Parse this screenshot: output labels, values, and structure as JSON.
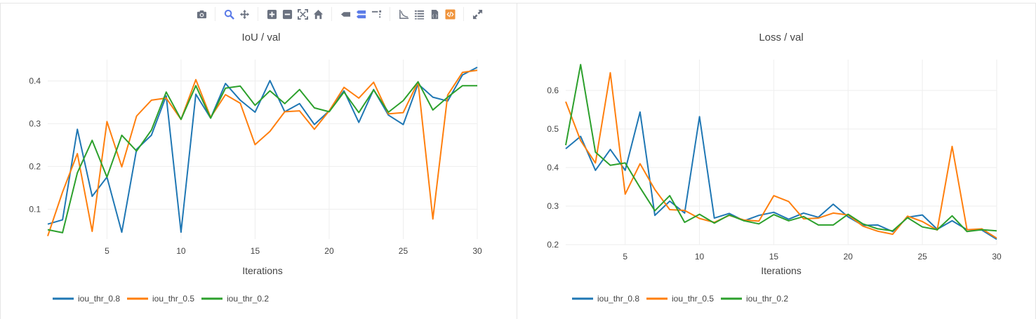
{
  "toolbar": {
    "icons": [
      "camera-icon",
      "zoom-icon",
      "pan-icon",
      "zoom-in-icon",
      "zoom-out-icon",
      "autoscale-icon",
      "reset-axes-icon",
      "hover-closest-icon",
      "hover-compare-icon",
      "spike-lines-icon",
      "log-scale-icon",
      "data-table-icon",
      "download-json-icon",
      "show-code-icon",
      "fullscreen-icon"
    ],
    "colors": {
      "inactive": "#6b7280",
      "active": "#5b7be8",
      "accent": "#f0943c"
    }
  },
  "chart_data": [
    {
      "type": "line",
      "title": "IoU / val",
      "xlabel": "Iterations",
      "ylabel": "",
      "xlim": [
        1,
        30
      ],
      "ylim": [
        0.03,
        0.45
      ],
      "xticks": [
        5,
        10,
        15,
        20,
        25,
        30
      ],
      "yticks": [
        0.1,
        0.2,
        0.3,
        0.4
      ],
      "ytick_labels": [
        "0.1",
        "0.2",
        "0.3",
        "0.4"
      ],
      "grid": true,
      "legend_position": "bottom-left",
      "x": [
        1,
        2,
        3,
        4,
        5,
        6,
        7,
        8,
        9,
        10,
        11,
        12,
        13,
        14,
        15,
        16,
        17,
        18,
        19,
        20,
        21,
        22,
        23,
        24,
        25,
        26,
        27,
        28,
        29,
        30
      ],
      "series": [
        {
          "name": "iou_thr_0.8",
          "color": "#1f77b4",
          "values": [
            0.065,
            0.075,
            0.287,
            0.13,
            0.175,
            0.046,
            0.24,
            0.273,
            0.365,
            0.046,
            0.369,
            0.313,
            0.394,
            0.355,
            0.327,
            0.401,
            0.328,
            0.347,
            0.298,
            0.33,
            0.377,
            0.303,
            0.38,
            0.32,
            0.298,
            0.393,
            0.362,
            0.353,
            0.414,
            0.432
          ]
        },
        {
          "name": "iou_thr_0.5",
          "color": "#ff7f0e",
          "values": [
            0.037,
            0.14,
            0.23,
            0.048,
            0.305,
            0.199,
            0.318,
            0.355,
            0.36,
            0.31,
            0.403,
            0.315,
            0.368,
            0.348,
            0.251,
            0.282,
            0.328,
            0.33,
            0.287,
            0.33,
            0.385,
            0.36,
            0.397,
            0.323,
            0.326,
            0.398,
            0.077,
            0.367,
            0.42,
            0.425
          ]
        },
        {
          "name": "iou_thr_0.2",
          "color": "#2ca02c",
          "values": [
            0.052,
            0.045,
            0.185,
            0.261,
            0.175,
            0.273,
            0.236,
            0.285,
            0.374,
            0.31,
            0.389,
            0.313,
            0.383,
            0.388,
            0.343,
            0.377,
            0.347,
            0.38,
            0.337,
            0.328,
            0.374,
            0.326,
            0.379,
            0.327,
            0.354,
            0.398,
            0.332,
            0.362,
            0.389,
            0.389
          ]
        }
      ]
    },
    {
      "type": "line",
      "title": "Loss / val",
      "xlabel": "Iterations",
      "ylabel": "",
      "xlim": [
        1,
        30
      ],
      "ylim": [
        0.2,
        0.68
      ],
      "xticks": [
        5,
        10,
        15,
        20,
        25,
        30
      ],
      "yticks": [
        0.2,
        0.3,
        0.4,
        0.5,
        0.6
      ],
      "ytick_labels": [
        "0.2",
        "0.3",
        "0.4",
        "0.5",
        "0.6"
      ],
      "grid": true,
      "legend_position": "bottom-left",
      "x": [
        1,
        2,
        3,
        4,
        5,
        6,
        7,
        8,
        9,
        10,
        11,
        12,
        13,
        14,
        15,
        16,
        17,
        18,
        19,
        20,
        21,
        22,
        23,
        24,
        25,
        26,
        27,
        28,
        29,
        30
      ],
      "series": [
        {
          "name": "iou_thr_0.8",
          "color": "#1f77b4",
          "values": [
            0.449,
            0.481,
            0.393,
            0.447,
            0.393,
            0.544,
            0.276,
            0.313,
            0.282,
            0.532,
            0.269,
            0.281,
            0.262,
            0.276,
            0.284,
            0.266,
            0.282,
            0.271,
            0.305,
            0.272,
            0.25,
            0.251,
            0.234,
            0.271,
            0.277,
            0.24,
            0.262,
            0.239,
            0.238,
            0.214
          ]
        },
        {
          "name": "iou_thr_0.5",
          "color": "#ff7f0e",
          "values": [
            0.571,
            0.47,
            0.412,
            0.646,
            0.331,
            0.41,
            0.343,
            0.291,
            0.289,
            0.268,
            0.258,
            0.276,
            0.264,
            0.261,
            0.327,
            0.312,
            0.267,
            0.269,
            0.282,
            0.277,
            0.248,
            0.235,
            0.227,
            0.274,
            0.26,
            0.238,
            0.455,
            0.239,
            0.241,
            0.217
          ]
        },
        {
          "name": "iou_thr_0.2",
          "color": "#2ca02c",
          "values": [
            0.458,
            0.667,
            0.44,
            0.406,
            0.412,
            0.348,
            0.288,
            0.327,
            0.258,
            0.279,
            0.256,
            0.277,
            0.262,
            0.254,
            0.278,
            0.262,
            0.273,
            0.251,
            0.251,
            0.279,
            0.254,
            0.241,
            0.236,
            0.27,
            0.246,
            0.239,
            0.275,
            0.234,
            0.239,
            0.236
          ]
        }
      ]
    }
  ]
}
